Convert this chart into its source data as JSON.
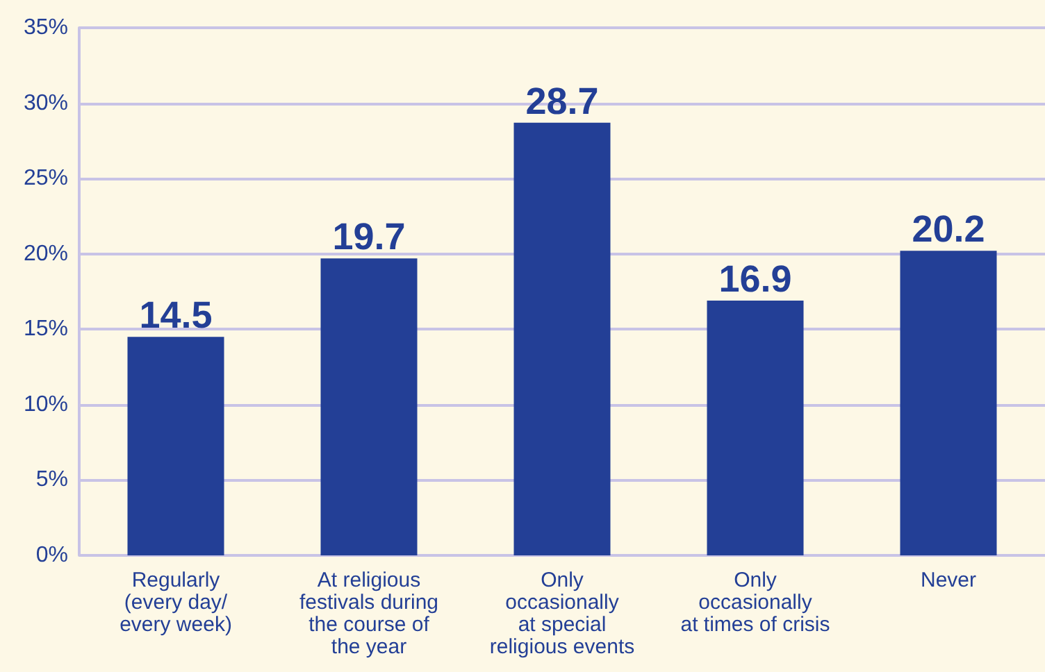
{
  "chart_data": {
    "type": "bar",
    "categories": [
      "Regularly\n(every day/\nevery week)",
      "At religious\nfestivals during\nthe course of\nthe year",
      "Only\noccasionally\nat special\nreligious events",
      "Only\noccasionally\nat times of crisis",
      "Never"
    ],
    "values": [
      14.5,
      19.7,
      28.7,
      16.9,
      20.2
    ],
    "color": "#233f96",
    "ylim": [
      0,
      35
    ],
    "yticks": [
      {
        "value": 0,
        "label": "0%"
      },
      {
        "value": 5,
        "label": "5%"
      },
      {
        "value": 10,
        "label": "10%"
      },
      {
        "value": 15,
        "label": "15%"
      },
      {
        "value": 20,
        "label": "20%"
      },
      {
        "value": 25,
        "label": "25%"
      },
      {
        "value": 30,
        "label": "30%"
      },
      {
        "value": 35,
        "label": "35%"
      }
    ],
    "grid": "y",
    "data_labels": true
  }
}
